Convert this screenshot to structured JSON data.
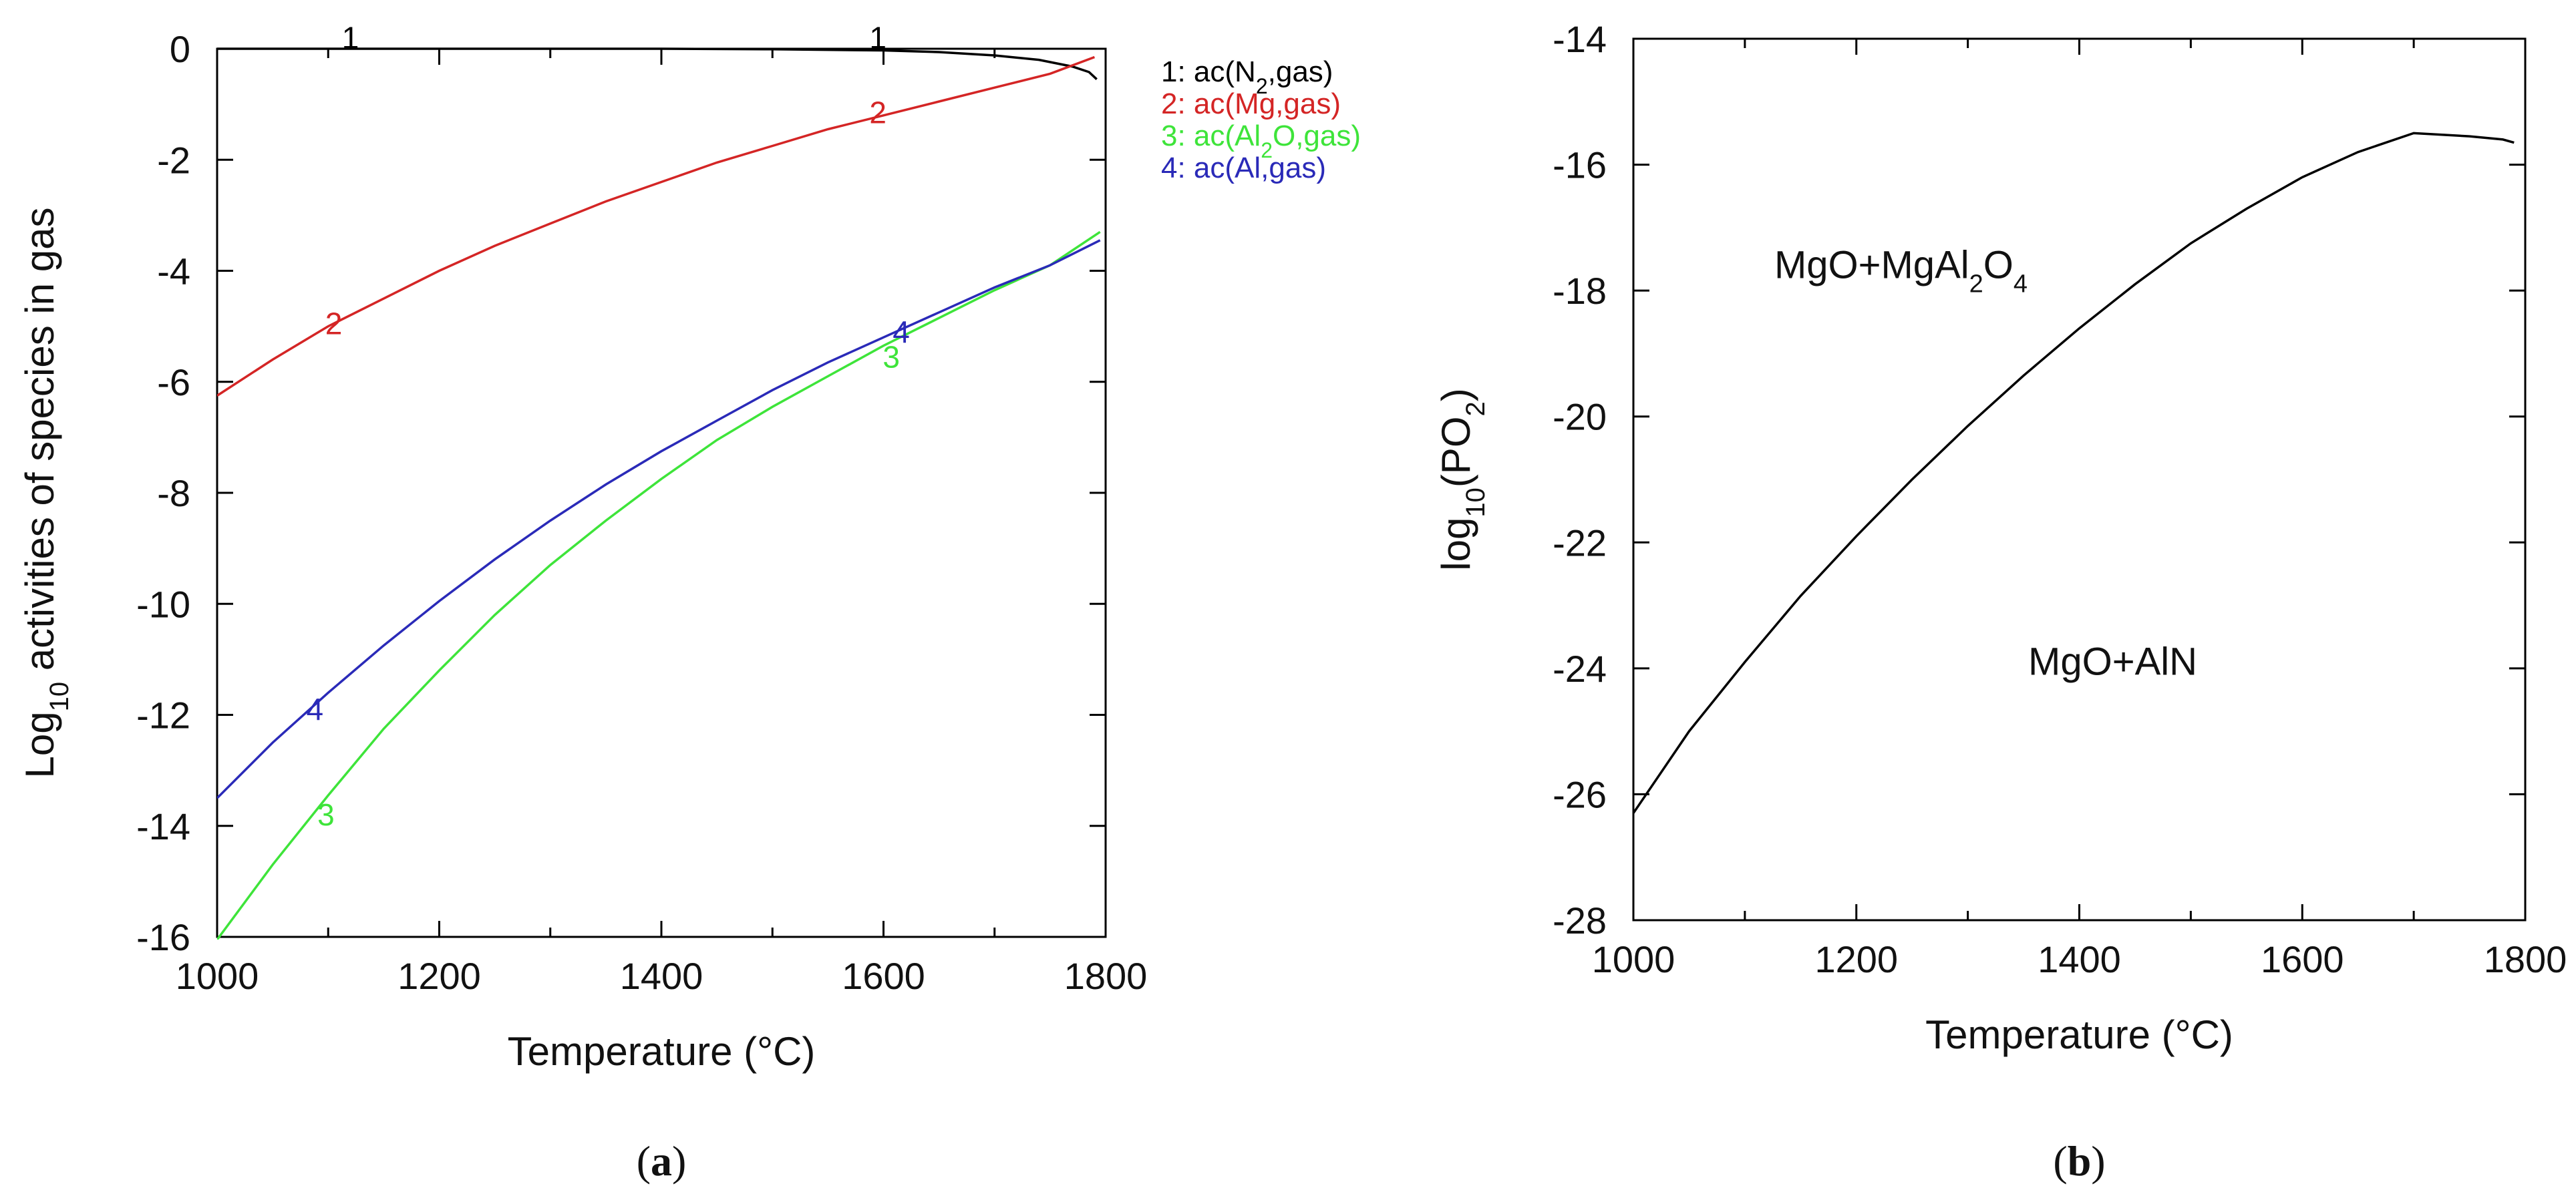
{
  "chart_data": [
    {
      "type": "line",
      "panel": "a",
      "caption_letter": "a",
      "xlabel": "Temperature (°C)",
      "ylabel": {
        "prefix": "Log",
        "sub": "10",
        "suffix": " activities of species in gas"
      },
      "xlim": [
        1000,
        1800
      ],
      "ylim": [
        -16,
        0
      ],
      "xticks": [
        1000,
        1200,
        1400,
        1600,
        1800
      ],
      "yticks": [
        0,
        -2,
        -4,
        -6,
        -8,
        -10,
        -12,
        -14,
        -16
      ],
      "top_marker_text": "1",
      "series": [
        {
          "id": "1",
          "name": "ac(N2,gas)",
          "color": "#000000",
          "x": [
            1000,
            1100,
            1200,
            1300,
            1400,
            1500,
            1600,
            1650,
            1700,
            1740,
            1770,
            1785,
            1792
          ],
          "y": [
            0,
            0,
            0,
            0,
            0,
            -0.01,
            -0.03,
            -0.06,
            -0.12,
            -0.2,
            -0.32,
            -0.42,
            -0.55
          ],
          "legend": {
            "num": "1:",
            "pre": " ac(N",
            "sub": "2",
            "post": ",gas)"
          },
          "labels": [
            {
              "x": 1120,
              "y": 0.2
            },
            {
              "x": 1595,
              "y": 0.2
            }
          ]
        },
        {
          "id": "2",
          "name": "ac(Mg,gas)",
          "color": "#d42525",
          "x": [
            1000,
            1050,
            1100,
            1150,
            1200,
            1250,
            1300,
            1350,
            1400,
            1450,
            1500,
            1550,
            1600,
            1650,
            1700,
            1750,
            1790
          ],
          "y": [
            -6.25,
            -5.6,
            -5.0,
            -4.5,
            -4.0,
            -3.55,
            -3.15,
            -2.75,
            -2.4,
            -2.05,
            -1.75,
            -1.45,
            -1.2,
            -0.95,
            -0.7,
            -0.45,
            -0.15
          ],
          "legend": {
            "num": "2:",
            "pre": " ac(Mg,gas)",
            "sub": "",
            "post": ""
          },
          "labels": [
            {
              "x": 1105,
              "y": -4.95
            },
            {
              "x": 1595,
              "y": -1.15
            }
          ]
        },
        {
          "id": "3",
          "name": "ac(Al2O,gas)",
          "color": "#3ee43a",
          "x": [
            1000,
            1050,
            1100,
            1150,
            1200,
            1250,
            1300,
            1350,
            1400,
            1450,
            1500,
            1550,
            1600,
            1650,
            1700,
            1750,
            1795
          ],
          "y": [
            -16.05,
            -14.7,
            -13.45,
            -12.25,
            -11.2,
            -10.2,
            -9.3,
            -8.5,
            -7.75,
            -7.05,
            -6.45,
            -5.9,
            -5.35,
            -4.85,
            -4.35,
            -3.9,
            -3.3
          ],
          "legend": {
            "num": "3:",
            "pre": " ac(Al",
            "sub": "2",
            "post": "O,gas)"
          },
          "labels": [
            {
              "x": 1098,
              "y": -13.8
            },
            {
              "x": 1607,
              "y": -5.55
            }
          ]
        },
        {
          "id": "4",
          "name": "ac(Al,gas)",
          "color": "#2a2ab8",
          "x": [
            1000,
            1050,
            1100,
            1150,
            1200,
            1250,
            1300,
            1350,
            1400,
            1450,
            1500,
            1550,
            1600,
            1650,
            1700,
            1750,
            1795
          ],
          "y": [
            -13.5,
            -12.5,
            -11.6,
            -10.75,
            -9.95,
            -9.2,
            -8.5,
            -7.85,
            -7.25,
            -6.7,
            -6.15,
            -5.65,
            -5.2,
            -4.75,
            -4.3,
            -3.9,
            -3.45
          ],
          "legend": {
            "num": "4:",
            "pre": " ac(Al,gas)",
            "sub": "",
            "post": ""
          },
          "labels": [
            {
              "x": 1088,
              "y": -11.9
            },
            {
              "x": 1616,
              "y": -5.1
            }
          ]
        }
      ]
    },
    {
      "type": "line",
      "panel": "b",
      "caption_letter": "b",
      "xlabel": "Temperature (°C)",
      "ylabel": {
        "prefix": "log",
        "sub": "10",
        "mid": "(PO",
        "sub2": "2",
        "suffix": ")"
      },
      "xlim": [
        1000,
        1800
      ],
      "ylim": [
        -28,
        -14
      ],
      "xticks": [
        1000,
        1200,
        1400,
        1600,
        1800
      ],
      "yticks": [
        -14,
        -16,
        -18,
        -20,
        -22,
        -24,
        -26,
        -28
      ],
      "series": [
        {
          "name": "MgO+MgAl2O4 / MgO+AlN boundary",
          "color": "#000000",
          "x": [
            1000,
            1050,
            1100,
            1150,
            1200,
            1250,
            1300,
            1350,
            1400,
            1450,
            1500,
            1550,
            1600,
            1650,
            1700,
            1750,
            1780,
            1790
          ],
          "y": [
            -26.3,
            -25.0,
            -23.9,
            -22.85,
            -21.9,
            -21.0,
            -20.15,
            -19.35,
            -18.6,
            -17.9,
            -17.25,
            -16.7,
            -16.2,
            -15.8,
            -15.5,
            -15.55,
            -15.6,
            -15.65
          ]
        }
      ],
      "regions": [
        {
          "pre": "MgO+MgAl",
          "sub": "2",
          "mid": "O",
          "sub2": "4",
          "x": 1240,
          "y": -17.8
        },
        {
          "pre": "MgO+AlN",
          "sub": "",
          "mid": "",
          "sub2": "",
          "x": 1430,
          "y": -24.1
        }
      ]
    }
  ]
}
